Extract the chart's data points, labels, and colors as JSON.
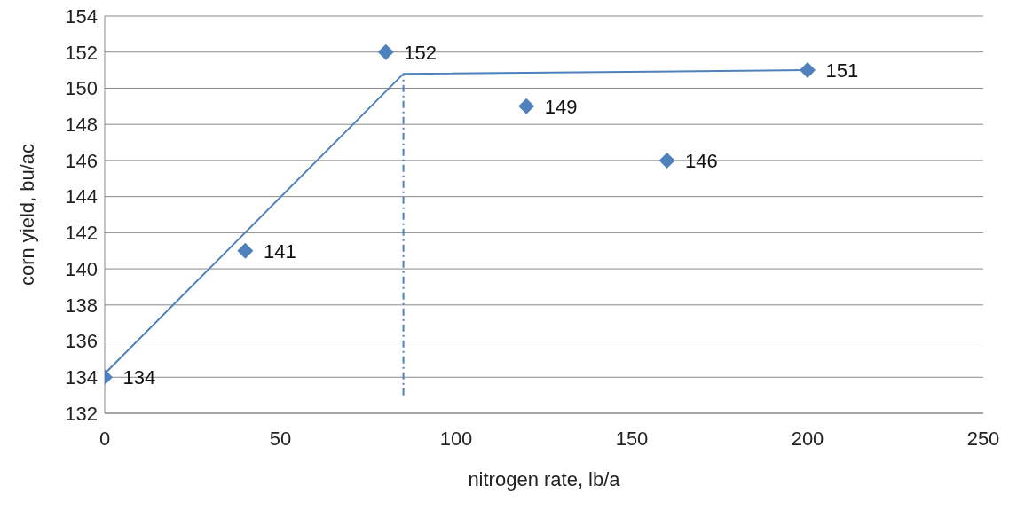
{
  "chart_data": {
    "type": "scatter",
    "xlabel": "nitrogen rate, lb/a",
    "ylabel": "corn yield, bu/ac",
    "xlim": [
      0,
      250
    ],
    "xticks": [
      0,
      50,
      100,
      150,
      200,
      250
    ],
    "ylim": [
      132,
      154
    ],
    "yticks": [
      132,
      134,
      136,
      138,
      140,
      142,
      144,
      146,
      148,
      150,
      152,
      154
    ],
    "grid": "y",
    "marker": "diamond",
    "series": [
      {
        "color": "#4f81bd",
        "x": [
          0,
          40,
          80,
          120,
          160,
          200
        ],
        "values": [
          134,
          141,
          152,
          149,
          146,
          151
        ],
        "value_labels": [
          "134",
          "141",
          "152",
          "149",
          "146",
          "151"
        ]
      },
      {
        "type": "line",
        "marker": "none",
        "color": "#4f81bd",
        "x": [
          0,
          85,
          200
        ],
        "values": [
          134.2,
          150.8,
          151
        ]
      },
      {
        "type": "line",
        "marker": "none",
        "color": "#4f81bd",
        "x": [
          85,
          85
        ],
        "values": [
          133,
          150.8
        ],
        "line_style": "dashed"
      }
    ]
  }
}
